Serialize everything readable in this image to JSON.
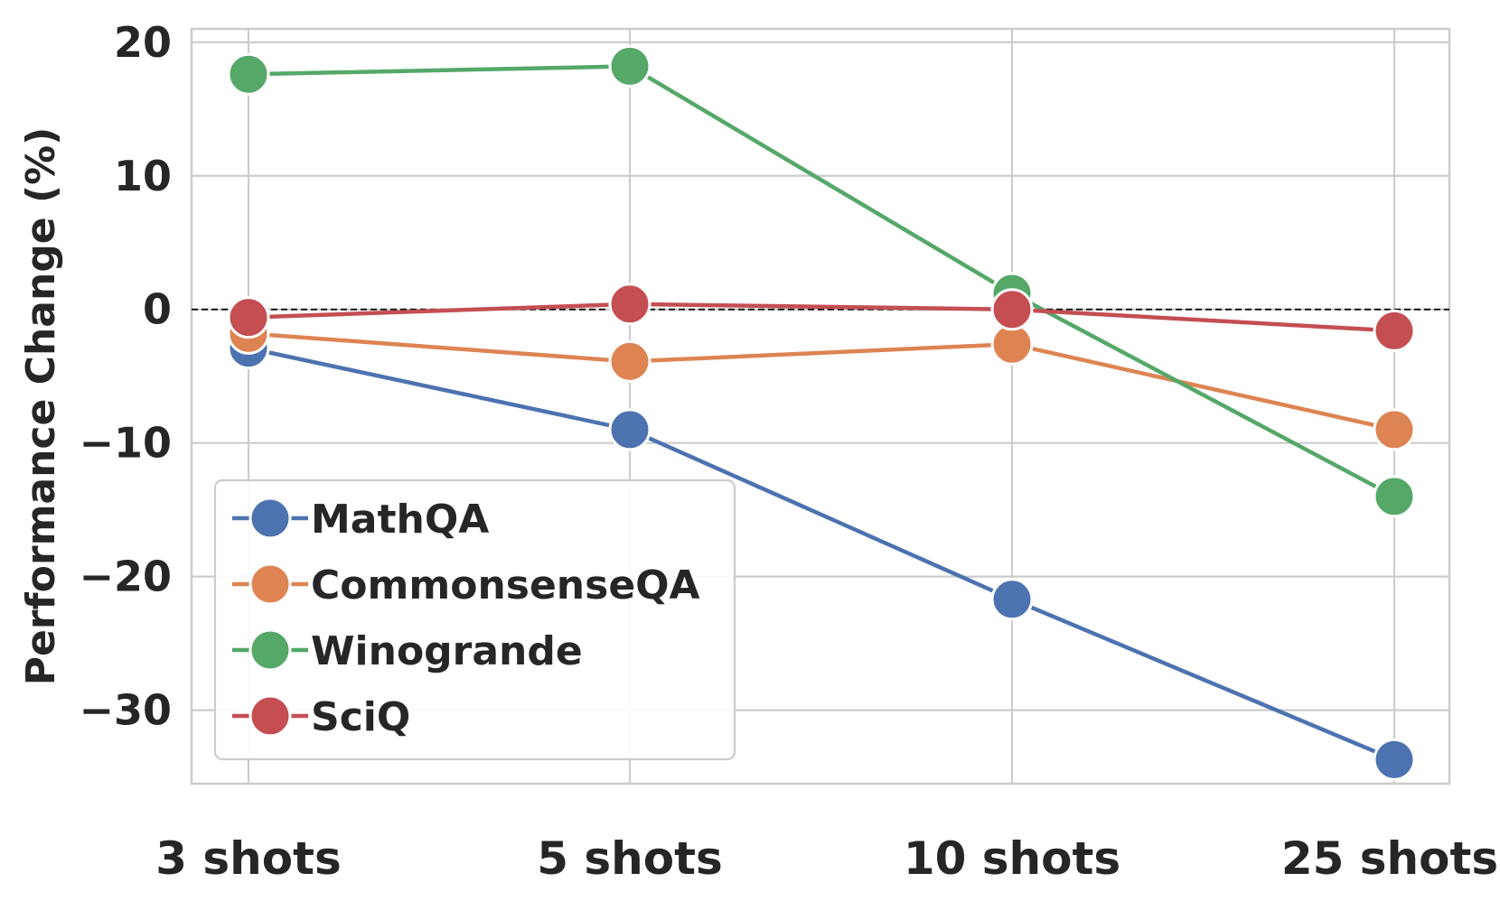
{
  "chart_data": {
    "type": "line",
    "title": "",
    "xlabel": "",
    "ylabel": "Performance Change (%)",
    "categories": [
      "3 shots",
      "5 shots",
      "10 shots",
      "25 shots"
    ],
    "ylim": [
      -35.5,
      21
    ],
    "yticks": [
      20,
      10,
      0,
      -10,
      -20,
      -30
    ],
    "ytick_labels": [
      "20",
      "10",
      "0",
      "−10",
      "−20",
      "−30"
    ],
    "grid": true,
    "reference_line": 0,
    "legend_position": "lower-left",
    "series": [
      {
        "name": "MathQA",
        "color": "#4c72b0",
        "values": [
          -2.9,
          -9.0,
          -21.7,
          -33.7
        ]
      },
      {
        "name": "CommonsenseQA",
        "color": "#dd8452",
        "values": [
          -1.8,
          -3.9,
          -2.6,
          -9.0
        ]
      },
      {
        "name": "Winogrande",
        "color": "#55a868",
        "values": [
          17.6,
          18.2,
          1.2,
          -14.0
        ]
      },
      {
        "name": "SciQ",
        "color": "#c44e52",
        "values": [
          -0.6,
          0.4,
          0.0,
          -1.6
        ]
      }
    ]
  }
}
